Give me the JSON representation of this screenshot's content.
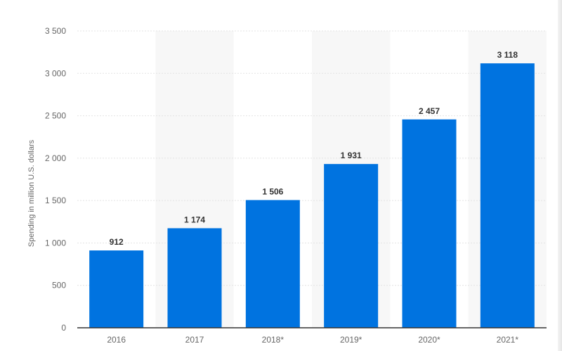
{
  "chart_data": {
    "type": "bar",
    "categories": [
      "2016",
      "2017",
      "2018*",
      "2019*",
      "2020*",
      "2021*"
    ],
    "values": [
      912,
      1174,
      1506,
      1931,
      2457,
      3118
    ],
    "value_labels": [
      "912",
      "1 174",
      "1 506",
      "1 931",
      "2 457",
      "3 118"
    ],
    "title": "",
    "xlabel": "",
    "ylabel": "Spending in million U.S. dollars",
    "ylim": [
      0,
      3500
    ],
    "yticks": [
      0,
      500,
      1000,
      1500,
      2000,
      2500,
      3000,
      3500
    ],
    "ytick_labels": [
      "0",
      "500",
      "1 000",
      "1 500",
      "2 000",
      "2 500",
      "3 000",
      "3 500"
    ],
    "grid": true,
    "legend": "none",
    "colors": {
      "bar": "#0073e0",
      "band": "#f7f7f7",
      "grid": "#e3e3e3",
      "axis": "#333333"
    }
  }
}
